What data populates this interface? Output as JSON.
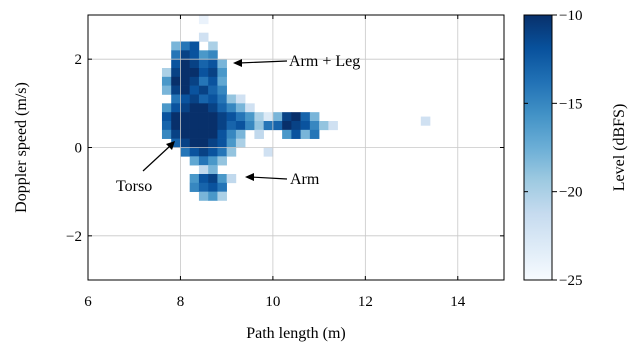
{
  "chart_data": {
    "type": "heatmap",
    "title": "",
    "xlabel": "Path length (m)",
    "ylabel": "Doppler speed (m/s)",
    "xlim": [
      6,
      15
    ],
    "ylim": [
      -3,
      3
    ],
    "xticks": [
      6,
      8,
      10,
      12,
      14
    ],
    "yticks": [
      -2,
      0,
      2
    ],
    "xtick_labels": [
      "6",
      "8",
      "10",
      "12",
      "14"
    ],
    "ytick_labels": [
      "−2",
      "0",
      "2"
    ],
    "grid": true,
    "colorbar": {
      "label": "Level (dBFS)",
      "range": [
        -25,
        -10
      ],
      "ticks": [
        -10,
        -15,
        -20,
        -25
      ],
      "tick_labels": [
        "−10",
        "−15",
        "−20",
        "−25"
      ],
      "colormap": "Blues"
    },
    "cell_size": [
      0.2,
      0.2
    ],
    "cells": [
      [
        8.5,
        2.9,
        -24
      ],
      [
        8.5,
        2.5,
        -22
      ],
      [
        7.9,
        2.3,
        -18
      ],
      [
        8.1,
        2.3,
        -14
      ],
      [
        8.3,
        2.3,
        -12
      ],
      [
        8.7,
        2.3,
        -20
      ],
      [
        7.9,
        2.1,
        -14
      ],
      [
        8.1,
        2.1,
        -11
      ],
      [
        8.3,
        2.1,
        -12
      ],
      [
        8.5,
        2.1,
        -16
      ],
      [
        8.7,
        2.1,
        -15
      ],
      [
        7.9,
        1.9,
        -12
      ],
      [
        8.1,
        1.9,
        -10
      ],
      [
        8.3,
        1.9,
        -11
      ],
      [
        8.5,
        1.9,
        -13
      ],
      [
        8.7,
        1.9,
        -12
      ],
      [
        8.9,
        1.9,
        -18
      ],
      [
        7.7,
        1.7,
        -20
      ],
      [
        7.9,
        1.7,
        -11
      ],
      [
        8.1,
        1.7,
        -10
      ],
      [
        8.3,
        1.7,
        -10
      ],
      [
        8.5,
        1.7,
        -12
      ],
      [
        8.7,
        1.7,
        -11
      ],
      [
        8.9,
        1.7,
        -16
      ],
      [
        7.7,
        1.5,
        -16
      ],
      [
        7.9,
        1.5,
        -10
      ],
      [
        8.1,
        1.5,
        -10
      ],
      [
        8.3,
        1.5,
        -11
      ],
      [
        8.5,
        1.5,
        -14
      ],
      [
        8.7,
        1.5,
        -12
      ],
      [
        8.9,
        1.5,
        -17
      ],
      [
        7.7,
        1.3,
        -18
      ],
      [
        7.9,
        1.3,
        -11
      ],
      [
        8.1,
        1.3,
        -10
      ],
      [
        8.3,
        1.3,
        -12
      ],
      [
        8.5,
        1.3,
        -11
      ],
      [
        8.7,
        1.3,
        -13
      ],
      [
        8.9,
        1.3,
        -15
      ],
      [
        7.9,
        1.1,
        -14
      ],
      [
        8.1,
        1.1,
        -12
      ],
      [
        8.3,
        1.1,
        -11
      ],
      [
        8.5,
        1.1,
        -13
      ],
      [
        8.7,
        1.1,
        -12
      ],
      [
        8.9,
        1.1,
        -14
      ],
      [
        9.1,
        1.1,
        -19
      ],
      [
        9.3,
        1.1,
        -22
      ],
      [
        7.7,
        0.9,
        -16
      ],
      [
        7.9,
        0.9,
        -12
      ],
      [
        8.1,
        0.9,
        -11
      ],
      [
        8.3,
        0.9,
        -10
      ],
      [
        8.5,
        0.9,
        -10
      ],
      [
        8.7,
        0.9,
        -11
      ],
      [
        8.9,
        0.9,
        -13
      ],
      [
        9.1,
        0.9,
        -15
      ],
      [
        9.3,
        0.9,
        -18
      ],
      [
        9.5,
        0.9,
        -22
      ],
      [
        7.7,
        0.7,
        -12
      ],
      [
        7.9,
        0.7,
        -10
      ],
      [
        8.1,
        0.7,
        -10
      ],
      [
        8.3,
        0.7,
        -10
      ],
      [
        8.5,
        0.7,
        -10
      ],
      [
        8.7,
        0.7,
        -10
      ],
      [
        8.9,
        0.7,
        -11
      ],
      [
        9.1,
        0.7,
        -12
      ],
      [
        9.3,
        0.7,
        -14
      ],
      [
        9.5,
        0.7,
        -16
      ],
      [
        9.7,
        0.7,
        -20
      ],
      [
        9.9,
        0.7,
        -23
      ],
      [
        10.1,
        0.7,
        -18
      ],
      [
        10.3,
        0.7,
        -11
      ],
      [
        10.5,
        0.7,
        -10
      ],
      [
        10.7,
        0.7,
        -13
      ],
      [
        10.9,
        0.7,
        -18
      ],
      [
        7.7,
        0.5,
        -13
      ],
      [
        7.9,
        0.5,
        -10
      ],
      [
        8.1,
        0.5,
        -10
      ],
      [
        8.3,
        0.5,
        -10
      ],
      [
        8.5,
        0.5,
        -10
      ],
      [
        8.7,
        0.5,
        -10
      ],
      [
        8.9,
        0.5,
        -11
      ],
      [
        9.1,
        0.5,
        -13
      ],
      [
        9.3,
        0.5,
        -12
      ],
      [
        9.5,
        0.5,
        -15
      ],
      [
        9.7,
        0.5,
        -19
      ],
      [
        9.9,
        0.5,
        -14
      ],
      [
        10.1,
        0.5,
        -13
      ],
      [
        10.3,
        0.5,
        -10
      ],
      [
        10.5,
        0.5,
        -11
      ],
      [
        10.7,
        0.5,
        -12
      ],
      [
        10.9,
        0.5,
        -15
      ],
      [
        11.1,
        0.5,
        -19
      ],
      [
        11.3,
        0.5,
        -22
      ],
      [
        7.7,
        0.3,
        -15
      ],
      [
        7.9,
        0.3,
        -11
      ],
      [
        8.1,
        0.3,
        -10
      ],
      [
        8.3,
        0.3,
        -10
      ],
      [
        8.5,
        0.3,
        -10
      ],
      [
        8.7,
        0.3,
        -10
      ],
      [
        8.9,
        0.3,
        -12
      ],
      [
        9.1,
        0.3,
        -15
      ],
      [
        9.3,
        0.3,
        -18
      ],
      [
        9.7,
        0.3,
        -21
      ],
      [
        10.3,
        0.3,
        -16
      ],
      [
        10.5,
        0.3,
        -12
      ],
      [
        10.7,
        0.3,
        -18
      ],
      [
        10.9,
        0.3,
        -14
      ],
      [
        7.9,
        0.1,
        -13
      ],
      [
        8.1,
        0.1,
        -11
      ],
      [
        8.3,
        0.1,
        -10
      ],
      [
        8.5,
        0.1,
        -10
      ],
      [
        8.7,
        0.1,
        -11
      ],
      [
        8.9,
        0.1,
        -12
      ],
      [
        9.1,
        0.1,
        -16
      ],
      [
        9.3,
        0.1,
        -20
      ],
      [
        8.1,
        -0.1,
        -14
      ],
      [
        8.3,
        -0.1,
        -12
      ],
      [
        8.5,
        -0.1,
        -11
      ],
      [
        8.7,
        -0.1,
        -12
      ],
      [
        8.9,
        -0.1,
        -14
      ],
      [
        9.1,
        -0.1,
        -19
      ],
      [
        9.9,
        -0.1,
        -22
      ],
      [
        8.3,
        -0.3,
        -17
      ],
      [
        8.5,
        -0.3,
        -14
      ],
      [
        8.7,
        -0.3,
        -16
      ],
      [
        8.9,
        -0.3,
        -19
      ],
      [
        8.5,
        -0.5,
        -21
      ],
      [
        8.7,
        -0.5,
        -18
      ],
      [
        8.3,
        -0.7,
        -16
      ],
      [
        8.5,
        -0.7,
        -12
      ],
      [
        8.7,
        -0.7,
        -11
      ],
      [
        8.9,
        -0.7,
        -16
      ],
      [
        9.1,
        -0.7,
        -21
      ],
      [
        8.3,
        -0.9,
        -15
      ],
      [
        8.5,
        -0.9,
        -13
      ],
      [
        8.7,
        -0.9,
        -12
      ],
      [
        8.9,
        -0.9,
        -14
      ],
      [
        8.5,
        -1.1,
        -18
      ],
      [
        8.7,
        -1.1,
        -16
      ],
      [
        8.9,
        -1.1,
        -20
      ],
      [
        13.3,
        0.6,
        -22
      ]
    ],
    "annotations": [
      {
        "text": "Arm + Leg",
        "point": [
          9.1,
          1.9
        ]
      },
      {
        "text": "Torso",
        "point": [
          7.9,
          0.1
        ]
      },
      {
        "text": "Arm",
        "point": [
          9.05,
          -0.7
        ]
      }
    ]
  }
}
